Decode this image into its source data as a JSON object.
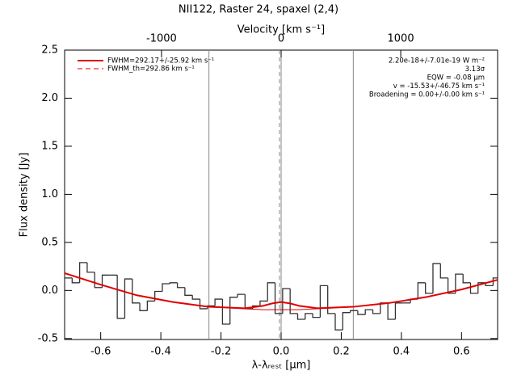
{
  "chart_data": {
    "type": "step",
    "title": "NII122, Raster 24, spaxel (2,4)",
    "x_label": "λ-λᵣₑₛₜ [μm]",
    "y_label": "Flux density [Jy]",
    "x2_label": "Velocity [km s⁻¹]",
    "xlim": [
      -0.72,
      0.72
    ],
    "ylim": [
      -0.51,
      2.5
    ],
    "x2lim": [
      -1810,
      1810
    ],
    "xticks": [
      -0.6,
      -0.4,
      -0.2,
      {
        "value": 0,
        "label": "0.0"
      },
      0.2,
      0.4,
      0.6
    ],
    "yticks": [
      -0.5,
      {
        "value": 0,
        "label": "0.0"
      },
      0.5,
      {
        "value": 1,
        "label": "1.0"
      },
      1.5,
      {
        "value": 2,
        "label": "2.0"
      },
      2.5
    ],
    "x2ticks": [
      -1000,
      0,
      1000
    ],
    "vlines": [
      -0.24,
      0,
      0.24
    ],
    "spectrum": {
      "color": "#333333",
      "bins": [
        -0.72,
        -0.695,
        -0.67,
        -0.645,
        -0.62,
        -0.595,
        -0.57,
        -0.545,
        -0.52,
        -0.495,
        -0.47,
        -0.445,
        -0.42,
        -0.395,
        -0.37,
        -0.345,
        -0.32,
        -0.295,
        -0.27,
        -0.245,
        -0.22,
        -0.195,
        -0.17,
        -0.145,
        -0.12,
        -0.095,
        -0.07,
        -0.045,
        -0.02,
        0.005,
        0.03,
        0.055,
        0.08,
        0.105,
        0.13,
        0.155,
        0.18,
        0.205,
        0.23,
        0.255,
        0.28,
        0.305,
        0.33,
        0.355,
        0.38,
        0.405,
        0.43,
        0.455,
        0.48,
        0.505,
        0.53,
        0.555,
        0.58,
        0.605,
        0.63,
        0.655,
        0.68,
        0.705,
        0.73
      ],
      "values": [
        0.13,
        0.08,
        0.29,
        0.19,
        0.03,
        0.16,
        0.16,
        -0.29,
        0.12,
        -0.13,
        -0.21,
        -0.11,
        -0.01,
        0.07,
        0.08,
        0.03,
        -0.05,
        -0.09,
        -0.19,
        -0.16,
        -0.09,
        -0.35,
        -0.07,
        -0.04,
        -0.19,
        -0.16,
        -0.11,
        0.08,
        -0.24,
        0.02,
        -0.24,
        -0.3,
        -0.24,
        -0.28,
        0.05,
        -0.24,
        -0.41,
        -0.23,
        -0.21,
        -0.25,
        -0.2,
        -0.24,
        -0.13,
        -0.3,
        -0.13,
        -0.13,
        -0.09,
        0.08,
        -0.03,
        0.28,
        0.13,
        -0.03,
        0.17,
        0.08,
        -0.03,
        0.08,
        0.05,
        0.13
      ]
    },
    "x": [
      -0.72,
      -0.6,
      -0.48,
      -0.36,
      -0.24,
      -0.12,
      -0.06,
      -0.03,
      0,
      0.03,
      0.06,
      0.12,
      0.24,
      0.36,
      0.48,
      0.6,
      0.72
    ],
    "series": [
      {
        "name": "FWHM=292.17+/-25.92 km s⁻¹",
        "color": "#e00000",
        "values": [
          0.18,
          0.06,
          -0.05,
          -0.12,
          -0.17,
          -0.185,
          -0.16,
          -0.135,
          -0.12,
          -0.135,
          -0.16,
          -0.185,
          -0.17,
          -0.13,
          -0.07,
          0.01,
          0.11
        ]
      },
      {
        "name": "FWHM_th=292.86 km s⁻¹",
        "color": "#e00000",
        "values": [
          0.18,
          0.06,
          -0.05,
          -0.12,
          -0.17,
          -0.19,
          -0.2,
          -0.2,
          -0.2,
          -0.2,
          -0.2,
          -0.19,
          -0.17,
          -0.13,
          -0.07,
          0.01,
          0.11
        ]
      }
    ],
    "annotations": [
      "2.20e-18+/-7.01e-19 W m⁻²",
      "3.13σ",
      "EQW = -0.08 μm",
      "v = -15.53+/-46.75 km s⁻¹",
      "Broadening = 0.00+/-0.00 km s⁻¹"
    ]
  }
}
